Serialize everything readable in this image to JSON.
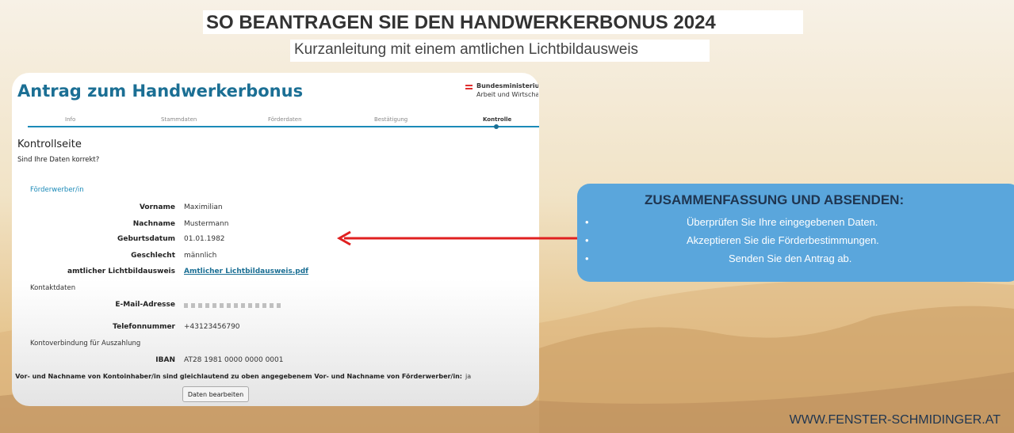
{
  "header": {
    "title": "SO BEANTRAGEN SIE DEN HANDWERKERBONUS 2024",
    "subtitle": "Kurzanleitung mit einem amtlichen Lichtbildausweis"
  },
  "form": {
    "title": "Antrag zum Handwerkerbonus",
    "ministry": [
      "Bundesministeriu",
      "Arbeit und Wirtscha"
    ],
    "steps": [
      "Info",
      "Stammdaten",
      "Förderdaten",
      "Bestätigung",
      "Kontrolle"
    ],
    "heading": "Kontrollseite",
    "question": "Sind Ihre Daten korrekt?",
    "section": "Förderwerber/in",
    "fields": [
      [
        "Vorname",
        "Maximilian"
      ],
      [
        "Nachname",
        "Mustermann"
      ],
      [
        "Geburtsdatum",
        "01.01.1982"
      ],
      [
        "Geschlecht",
        "männlich"
      ],
      [
        "amtlicher Lichtbildausweis",
        "Amtlicher Lichtbildausweis.pdf"
      ]
    ],
    "contact_heading": "Kontaktdaten",
    "email_label": "E-Mail-Adresse",
    "phone": [
      "Telefonnummer",
      "+43123456790"
    ],
    "bank_heading": "Kontoverbindung für Auszahlung",
    "iban": [
      "IBAN",
      "AT28 1981 0000 0000 0001"
    ],
    "confirm": [
      "Vor- und Nachname von Kontoinhaber/in sind gleichlautend zu oben angegebenem Vor- und Nachname von Förderwerber/in:",
      "ja"
    ],
    "button": "Daten bearbeiten"
  },
  "callout": {
    "title": "ZUSAMMENFASSUNG UND ABSENDEN:",
    "items": [
      "Überprüfen Sie Ihre eingegebenen Daten.",
      "Akzeptieren Sie die Förderbestimmungen.",
      "Senden Sie den Antrag ab."
    ]
  },
  "footer": "WWW.FENSTER-SCHMIDINGER.AT"
}
